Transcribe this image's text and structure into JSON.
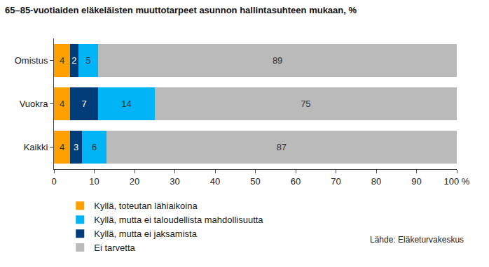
{
  "chart_data": {
    "type": "bar",
    "title": "65–85-vuotiaiden eläkeläisten muuttotarpeet asunnon hallintasuhteen mukaan, %",
    "annotations": [
      "Lähde: Eläketurvakeskus"
    ],
    "orientation": "horizontal",
    "stacked": true,
    "data_labels": true,
    "grid": false,
    "legend": "bottom",
    "categories": [
      "Omistus",
      "Vuokra",
      "Kaikki"
    ],
    "series": [
      {
        "name": "Kyllä, toteutan lähiaikoina",
        "color": "#ff9f00",
        "values": [
          4,
          4,
          4
        ]
      },
      {
        "name": "Kyllä, mutta ei jaksamista",
        "color": "#003d78",
        "values": [
          2,
          7,
          3
        ]
      },
      {
        "name": "Kyllä, mutta ei taloudellista mahdollisuutta",
        "color": "#00b4f5",
        "values": [
          5,
          14,
          6
        ]
      },
      {
        "name": "Ei tarvetta",
        "color": "#bababa",
        "values": [
          89,
          75,
          87
        ]
      }
    ],
    "xlim": [
      0,
      100
    ],
    "xticks": [
      0,
      10,
      20,
      30,
      40,
      50,
      60,
      70,
      80,
      90,
      {
        "value": 100,
        "label": "100 %"
      }
    ]
  }
}
